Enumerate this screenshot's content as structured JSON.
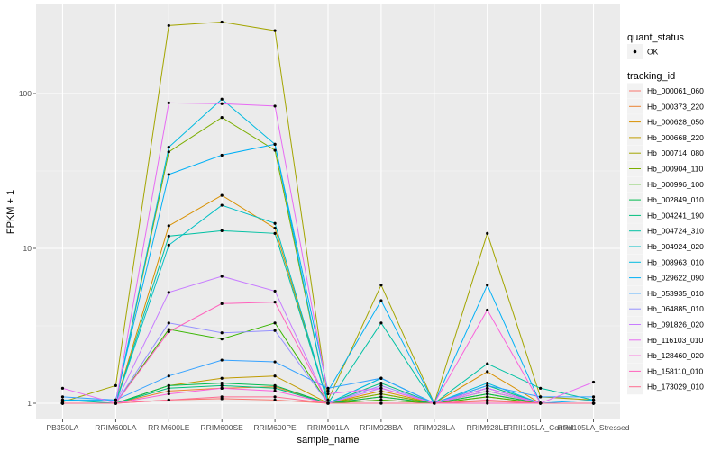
{
  "chart_data": {
    "type": "line",
    "title": "",
    "xlabel": "sample_name",
    "ylabel": "FPKM + 1",
    "yscale": "log10",
    "ylim": [
      0.93,
      340
    ],
    "y_ticks": [
      1,
      10,
      100
    ],
    "y_tick_labels": [
      "1",
      "10",
      "100"
    ],
    "grid": true,
    "legend_position": "right",
    "categories": [
      "PB350LA",
      "RRIM600LA",
      "RRIM600LE",
      "RRIM600SE",
      "RRIM600PE",
      "RRIM901LA",
      "RRIM928BA",
      "RRIM928LA",
      "RRIM928LE",
      "RRII105LA_Control",
      "RRII105LA_Stressed"
    ],
    "point_legend": {
      "title": "quant_status",
      "items": [
        "OK"
      ]
    },
    "series_legend_title": "tracking_id",
    "series": [
      {
        "name": "Hb_000061_060",
        "color": "#F8766D",
        "values": [
          1.0,
          1.0,
          1.05,
          1.07,
          1.05,
          1.0,
          1.05,
          1.0,
          1.03,
          1.0,
          1.0
        ]
      },
      {
        "name": "Hb_000373_220",
        "color": "#EA8331",
        "values": [
          1.0,
          1.0,
          1.2,
          1.25,
          1.28,
          1.0,
          1.1,
          1.0,
          1.1,
          1.0,
          1.0
        ]
      },
      {
        "name": "Hb_000628_050",
        "color": "#D89000",
        "values": [
          1.0,
          1.0,
          14,
          22,
          13.5,
          1.0,
          1.2,
          1.0,
          1.6,
          1.0,
          1.0
        ]
      },
      {
        "name": "Hb_000668_220",
        "color": "#C09B00",
        "values": [
          1.0,
          1.0,
          1.3,
          1.45,
          1.5,
          1.0,
          1.15,
          1.0,
          1.2,
          1.0,
          1.0
        ]
      },
      {
        "name": "Hb_000714_080",
        "color": "#A3A500",
        "values": [
          1.02,
          1.3,
          275,
          290,
          255,
          1.05,
          5.8,
          1.0,
          12.5,
          1.1,
          1.05
        ]
      },
      {
        "name": "Hb_000904_110",
        "color": "#7CAE00",
        "values": [
          1.0,
          1.0,
          42,
          70,
          43,
          1.0,
          1.15,
          1.0,
          1.15,
          1.0,
          1.0
        ]
      },
      {
        "name": "Hb_000996_100",
        "color": "#39B600",
        "values": [
          1.0,
          1.0,
          3.0,
          2.6,
          3.3,
          1.0,
          1.05,
          1.0,
          1.1,
          1.0,
          1.0
        ]
      },
      {
        "name": "Hb_002849_010",
        "color": "#00BB4E",
        "values": [
          1.0,
          1.0,
          1.3,
          1.35,
          1.3,
          1.0,
          1.1,
          1.0,
          1.15,
          1.0,
          1.0
        ]
      },
      {
        "name": "Hb_004241_190",
        "color": "#00BF7D",
        "values": [
          1.0,
          1.0,
          1.25,
          1.3,
          1.25,
          1.0,
          1.35,
          1.0,
          1.3,
          1.0,
          1.0
        ]
      },
      {
        "name": "Hb_004724_310",
        "color": "#00C1A3",
        "values": [
          1.05,
          1.0,
          12,
          13,
          12.5,
          1.0,
          3.3,
          1.0,
          1.8,
          1.25,
          1.05
        ]
      },
      {
        "name": "Hb_004924_020",
        "color": "#00BFC4",
        "values": [
          1.0,
          1.0,
          10.5,
          19,
          14.5,
          1.0,
          1.45,
          1.0,
          1.25,
          1.0,
          1.0
        ]
      },
      {
        "name": "Hb_008963_010",
        "color": "#00BAE0",
        "values": [
          1.0,
          1.0,
          45,
          92,
          47,
          1.0,
          1.45,
          1.0,
          1.35,
          1.0,
          1.0
        ]
      },
      {
        "name": "Hb_029622_090",
        "color": "#00B0F6",
        "values": [
          1.05,
          1.05,
          30,
          40,
          47,
          1.2,
          4.6,
          1.0,
          5.8,
          1.0,
          1.05
        ]
      },
      {
        "name": "Hb_053935_010",
        "color": "#35A2FF",
        "values": [
          1.1,
          1.05,
          1.5,
          1.9,
          1.85,
          1.25,
          1.45,
          1.0,
          1.3,
          1.1,
          1.1
        ]
      },
      {
        "name": "Hb_064885_010",
        "color": "#9590FF",
        "values": [
          1.0,
          1.0,
          3.3,
          2.85,
          2.95,
          1.0,
          1.3,
          1.0,
          1.25,
          1.0,
          1.0
        ]
      },
      {
        "name": "Hb_091826_020",
        "color": "#C77CFF",
        "values": [
          1.0,
          1.0,
          5.2,
          6.6,
          5.3,
          1.0,
          1.25,
          1.0,
          1.2,
          1.0,
          1.0
        ]
      },
      {
        "name": "Hb_116103_010",
        "color": "#E76BF3",
        "values": [
          1.25,
          1.0,
          87,
          86,
          83,
          1.15,
          1.25,
          1.0,
          1.25,
          1.0,
          1.37
        ]
      },
      {
        "name": "Hb_128460_020",
        "color": "#FA62DB",
        "values": [
          1.0,
          1.0,
          1.15,
          1.25,
          1.2,
          1.0,
          1.0,
          1.0,
          4.0,
          1.0,
          1.0
        ]
      },
      {
        "name": "Hb_158110_010",
        "color": "#FF62BC",
        "values": [
          1.0,
          1.0,
          2.9,
          4.4,
          4.5,
          1.0,
          1.0,
          1.0,
          1.0,
          1.0,
          1.0
        ]
      },
      {
        "name": "Hb_173029_010",
        "color": "#FF6C91",
        "values": [
          1.0,
          1.0,
          1.05,
          1.1,
          1.1,
          1.0,
          1.0,
          1.0,
          1.05,
          1.0,
          1.0
        ]
      }
    ]
  }
}
